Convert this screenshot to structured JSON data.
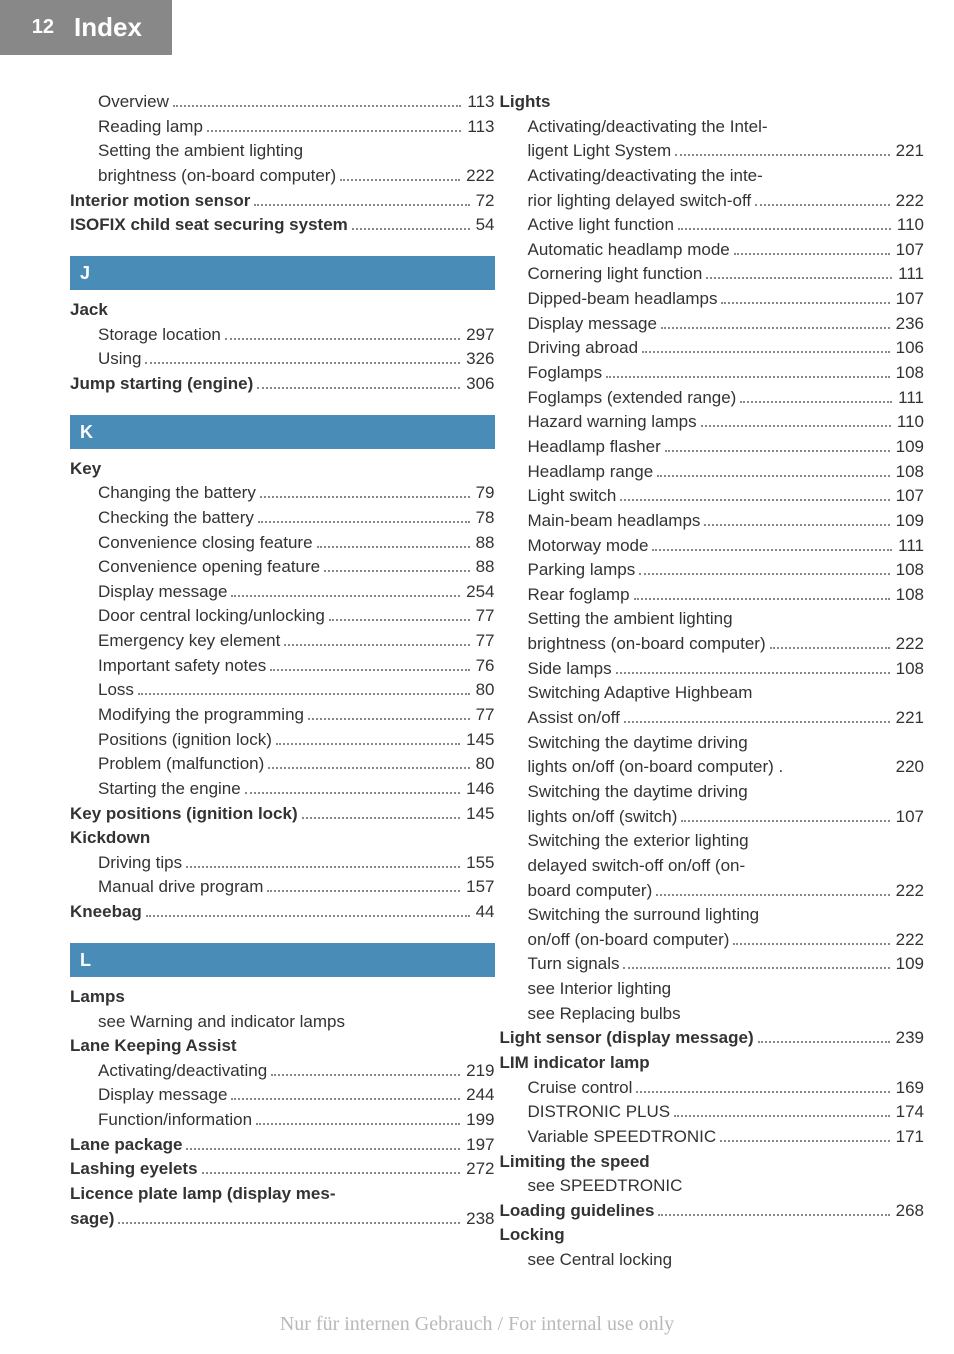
{
  "header": {
    "page": "12",
    "title": "Index"
  },
  "footer": "Nur für internen Gebrauch / For internal use only",
  "sections": {
    "J": "J",
    "K": "K",
    "L": "L"
  },
  "col1": [
    {
      "label": "Overview",
      "page": "113",
      "indent": 1
    },
    {
      "label": "Reading lamp",
      "page": "113",
      "indent": 1
    },
    {
      "label": "Setting the ambient lighting",
      "indent": 1,
      "nopage": true
    },
    {
      "label": "brightness (on-board computer)",
      "page": "222",
      "indent": 1
    },
    {
      "label": "Interior motion sensor",
      "page": "72",
      "indent": 0,
      "bold": true
    },
    {
      "label": "ISOFIX child seat securing system",
      "page": "54",
      "indent": 0,
      "bold": true
    }
  ],
  "jack_header": "Jack",
  "col1_j": [
    {
      "label": "Storage location",
      "page": "297",
      "indent": 1
    },
    {
      "label": "Using",
      "page": "326",
      "indent": 1
    },
    {
      "label": "Jump starting (engine)",
      "page": "306",
      "indent": 0,
      "bold": true
    }
  ],
  "key_header": "Key",
  "col1_k": [
    {
      "label": "Changing the battery",
      "page": "79",
      "indent": 1
    },
    {
      "label": "Checking the battery",
      "page": "78",
      "indent": 1
    },
    {
      "label": "Convenience closing feature",
      "page": "88",
      "indent": 1
    },
    {
      "label": "Convenience opening feature",
      "page": "88",
      "indent": 1
    },
    {
      "label": "Display message",
      "page": "254",
      "indent": 1
    },
    {
      "label": "Door central locking/unlocking",
      "page": "77",
      "indent": 1
    },
    {
      "label": "Emergency key element",
      "page": "77",
      "indent": 1
    },
    {
      "label": "Important safety notes",
      "page": "76",
      "indent": 1
    },
    {
      "label": "Loss",
      "page": "80",
      "indent": 1
    },
    {
      "label": "Modifying the programming",
      "page": "77",
      "indent": 1
    },
    {
      "label": "Positions (ignition lock)",
      "page": "145",
      "indent": 1
    },
    {
      "label": "Problem (malfunction)",
      "page": "80",
      "indent": 1
    },
    {
      "label": "Starting the engine",
      "page": "146",
      "indent": 1
    },
    {
      "label": "Key positions (ignition lock)",
      "page": "145",
      "indent": 0,
      "bold": true
    },
    {
      "label": "Kickdown",
      "indent": 0,
      "bold": true,
      "nopage": true
    },
    {
      "label": "Driving tips",
      "page": "155",
      "indent": 1
    },
    {
      "label": "Manual drive program",
      "page": "157",
      "indent": 1
    },
    {
      "label": "Kneebag",
      "page": "44",
      "indent": 0,
      "bold": true
    }
  ],
  "lamps_header": "Lamps",
  "col1_l": [
    {
      "label": "see Warning and indicator lamps",
      "indent": 1,
      "nopage": true
    },
    {
      "label": "Lane Keeping Assist",
      "indent": 0,
      "bold": true,
      "nopage": true
    },
    {
      "label": "Activating/deactivating",
      "page": "219",
      "indent": 1
    },
    {
      "label": "Display message",
      "page": "244",
      "indent": 1
    },
    {
      "label": "Function/information",
      "page": "199",
      "indent": 1
    },
    {
      "label": "Lane package",
      "page": "197",
      "indent": 0,
      "bold": true
    },
    {
      "label": "Lashing eyelets",
      "page": "272",
      "indent": 0,
      "bold": true
    },
    {
      "label": "Licence plate lamp (display mes-",
      "indent": 0,
      "bold": true,
      "nopage": true
    },
    {
      "label": "sage)",
      "page": "238",
      "indent": 0,
      "bold": true
    }
  ],
  "lights_header": "Lights",
  "col2": [
    {
      "label": "Activating/deactivating the Intel-",
      "indent": 1,
      "nopage": true
    },
    {
      "label": "ligent Light System",
      "page": "221",
      "indent": 1
    },
    {
      "label": "Activating/deactivating the inte-",
      "indent": 1,
      "nopage": true
    },
    {
      "label": "rior lighting delayed switch-off",
      "page": "222",
      "indent": 1
    },
    {
      "label": "Active light function",
      "page": "110",
      "indent": 1
    },
    {
      "label": "Automatic headlamp mode",
      "page": "107",
      "indent": 1
    },
    {
      "label": "Cornering light function",
      "page": "111",
      "indent": 1
    },
    {
      "label": "Dipped-beam headlamps",
      "page": "107",
      "indent": 1
    },
    {
      "label": "Display message",
      "page": "236",
      "indent": 1
    },
    {
      "label": "Driving abroad",
      "page": "106",
      "indent": 1
    },
    {
      "label": "Foglamps",
      "page": "108",
      "indent": 1
    },
    {
      "label": "Foglamps (extended range)",
      "page": "111",
      "indent": 1
    },
    {
      "label": "Hazard warning lamps",
      "page": "110",
      "indent": 1
    },
    {
      "label": "Headlamp flasher",
      "page": "109",
      "indent": 1
    },
    {
      "label": "Headlamp range",
      "page": "108",
      "indent": 1
    },
    {
      "label": "Light switch",
      "page": "107",
      "indent": 1
    },
    {
      "label": "Main-beam headlamps",
      "page": "109",
      "indent": 1
    },
    {
      "label": "Motorway mode",
      "page": "111",
      "indent": 1
    },
    {
      "label": "Parking lamps",
      "page": "108",
      "indent": 1
    },
    {
      "label": "Rear foglamp",
      "page": "108",
      "indent": 1
    },
    {
      "label": "Setting the ambient lighting",
      "indent": 1,
      "nopage": true
    },
    {
      "label": "brightness (on-board computer)",
      "page": "222",
      "indent": 1
    },
    {
      "label": "Side lamps",
      "page": "108",
      "indent": 1
    },
    {
      "label": "Switching Adaptive Highbeam",
      "indent": 1,
      "nopage": true
    },
    {
      "label": "Assist on/off",
      "page": "221",
      "indent": 1
    },
    {
      "label": "Switching the daytime driving",
      "indent": 1,
      "nopage": true
    },
    {
      "label": "lights on/off (on-board computer) .",
      "page": "220",
      "indent": 1,
      "nodots": true
    },
    {
      "label": "Switching the daytime driving",
      "indent": 1,
      "nopage": true
    },
    {
      "label": "lights on/off (switch)",
      "page": "107",
      "indent": 1
    },
    {
      "label": "Switching the exterior lighting",
      "indent": 1,
      "nopage": true
    },
    {
      "label": "delayed switch-off on/off (on-",
      "indent": 1,
      "nopage": true
    },
    {
      "label": "board computer)",
      "page": "222",
      "indent": 1
    },
    {
      "label": "Switching the surround lighting",
      "indent": 1,
      "nopage": true
    },
    {
      "label": "on/off (on-board computer)",
      "page": "222",
      "indent": 1
    },
    {
      "label": "Turn signals",
      "page": "109",
      "indent": 1
    },
    {
      "label": "see Interior lighting",
      "indent": 1,
      "nopage": true
    },
    {
      "label": "see Replacing bulbs",
      "indent": 1,
      "nopage": true
    },
    {
      "label": "Light sensor (display message)",
      "page": "239",
      "indent": 0,
      "bold": true
    },
    {
      "label": "LIM indicator lamp",
      "indent": 0,
      "bold": true,
      "nopage": true
    },
    {
      "label": "Cruise control",
      "page": "169",
      "indent": 1
    },
    {
      "label": "DISTRONIC PLUS",
      "page": "174",
      "indent": 1
    },
    {
      "label": "Variable SPEEDTRONIC",
      "page": "171",
      "indent": 1
    },
    {
      "label": "Limiting the speed",
      "indent": 0,
      "bold": true,
      "nopage": true
    },
    {
      "label": "see SPEEDTRONIC",
      "indent": 1,
      "nopage": true
    },
    {
      "label": "Loading guidelines",
      "page": "268",
      "indent": 0,
      "bold": true
    },
    {
      "label": "Locking",
      "indent": 0,
      "bold": true,
      "nopage": true
    },
    {
      "label": "see Central locking",
      "indent": 1,
      "nopage": true
    }
  ]
}
